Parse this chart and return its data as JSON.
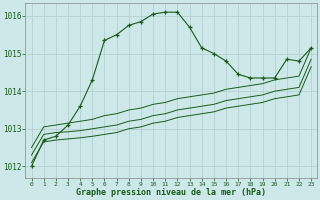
{
  "title": "Graphe pression niveau de la mer (hPa)",
  "background_color": "#cce8e8",
  "grid_color": "#b0cccc",
  "line_color": "#1a5c1a",
  "x_ticks": [
    0,
    1,
    2,
    3,
    4,
    5,
    6,
    7,
    8,
    9,
    10,
    11,
    12,
    13,
    14,
    15,
    16,
    17,
    18,
    19,
    20,
    21,
    22,
    23
  ],
  "ylim": [
    1011.7,
    1016.35
  ],
  "y_ticks": [
    1012,
    1013,
    1014,
    1015,
    1016
  ],
  "main_series": [
    1012.0,
    1012.7,
    1012.8,
    1013.1,
    1013.6,
    1014.3,
    1015.35,
    1015.5,
    1015.75,
    1015.85,
    1016.05,
    1016.1,
    1016.1,
    1015.7,
    1015.15,
    1015.0,
    1014.8,
    1014.45,
    1014.35,
    1014.35,
    1014.35,
    1014.85,
    1014.8,
    1015.15
  ],
  "trend1": [
    1012.5,
    1013.05,
    1013.1,
    1013.15,
    1013.2,
    1013.25,
    1013.35,
    1013.4,
    1013.5,
    1013.55,
    1013.65,
    1013.7,
    1013.8,
    1013.85,
    1013.9,
    1013.95,
    1014.05,
    1014.1,
    1014.15,
    1014.2,
    1014.3,
    1014.35,
    1014.4,
    1015.15
  ],
  "trend2": [
    1012.3,
    1012.85,
    1012.9,
    1012.92,
    1012.95,
    1013.0,
    1013.05,
    1013.1,
    1013.2,
    1013.25,
    1013.35,
    1013.4,
    1013.5,
    1013.55,
    1013.6,
    1013.65,
    1013.75,
    1013.8,
    1013.85,
    1013.9,
    1014.0,
    1014.05,
    1014.1,
    1014.85
  ],
  "trend3": [
    1012.1,
    1012.65,
    1012.7,
    1012.73,
    1012.76,
    1012.8,
    1012.85,
    1012.9,
    1013.0,
    1013.05,
    1013.15,
    1013.2,
    1013.3,
    1013.35,
    1013.4,
    1013.45,
    1013.55,
    1013.6,
    1013.65,
    1013.7,
    1013.8,
    1013.85,
    1013.9,
    1014.65
  ]
}
